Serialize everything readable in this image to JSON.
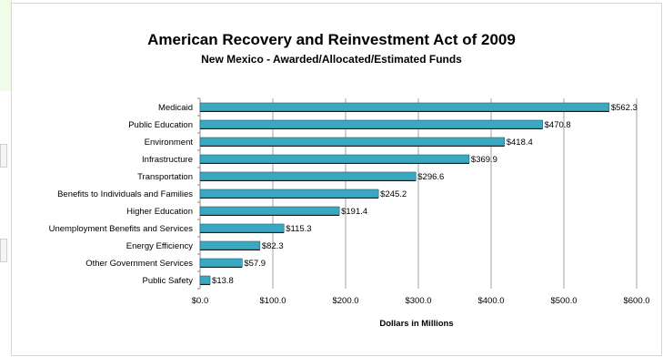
{
  "chart_data": {
    "type": "bar",
    "orientation": "horizontal",
    "title": "American Recovery and Reinvestment Act of 2009",
    "subtitle": "New Mexico - Awarded/Allocated/Estimated Funds",
    "xlabel": "Dollars in Millions",
    "ylabel": "",
    "xlim": [
      0,
      600
    ],
    "x_ticks": [
      "$0.0",
      "$100.0",
      "$200.0",
      "$300.0",
      "$400.0",
      "$500.0",
      "$600.0"
    ],
    "grid": true,
    "bar_color": "#3aa8c1",
    "categories": [
      "Medicaid",
      "Public Education",
      "Environment",
      "Infrastructure",
      "Transportation",
      "Benefits to Individuals and Families",
      "Higher Education",
      "Unemployment Benefits and Services",
      "Energy Efficiency",
      "Other Government Services",
      "Public Safety"
    ],
    "values": [
      562.3,
      470.8,
      418.4,
      369.9,
      296.6,
      245.2,
      191.4,
      115.3,
      82.3,
      57.9,
      13.8
    ],
    "data_labels": [
      "$562.3",
      "$470.8",
      "$418.4",
      "$369.9",
      "$296.6",
      "$245.2",
      "$191.4",
      "$115.3",
      "$82.3",
      "$57.9",
      "$13.8"
    ]
  }
}
